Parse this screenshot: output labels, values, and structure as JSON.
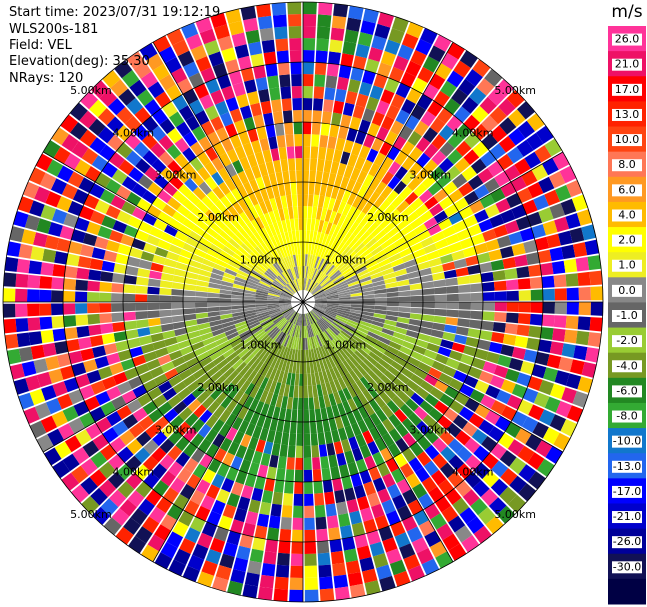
{
  "header": {
    "start_time": "Start time: 2023/07/31 19:12:19",
    "instrument": "WLS200s-181",
    "field": "Field: VEL",
    "elevation": "Elevation(deg): 35.30",
    "nrays": "NRays: 120"
  },
  "colorbar": {
    "unit": "m/s",
    "ticks": [
      "26.0",
      "21.0",
      "17.0",
      "13.0",
      "10.0",
      "8.0",
      "6.0",
      "4.0",
      "2.0",
      "1.0",
      "0.0",
      "-1.0",
      "-2.0",
      "-4.0",
      "-6.0",
      "-8.0",
      "-10.0",
      "-13.0",
      "-17.0",
      "-21.0",
      "-26.0",
      "-30.0"
    ],
    "colors": [
      "#ff3399",
      "#ee1166",
      "#ff0000",
      "#ff2200",
      "#ff4411",
      "#ff7755",
      "#ff9922",
      "#ffbb00",
      "#ffff00",
      "#eeee22",
      "#888888",
      "#666666",
      "#99cc33",
      "#779922",
      "#228822",
      "#33aa33",
      "#1177cc",
      "#2266ee",
      "#0000ff",
      "#0000cc",
      "#000099",
      "#111155",
      "#000044"
    ]
  },
  "chart_data": {
    "type": "ppi",
    "field": "VEL",
    "units": "m/s",
    "nrays": 120,
    "range_rings_km": [
      1.0,
      2.0,
      3.0,
      4.0,
      5.0
    ],
    "ring_labels": [
      "1.00km",
      "2.00km",
      "3.00km",
      "4.00km",
      "5.00km"
    ],
    "max_range_km": 5.0,
    "color_levels": [
      -30.0,
      -26.0,
      -21.0,
      -17.0,
      -13.0,
      -10.0,
      -8.0,
      -6.0,
      -4.0,
      -2.0,
      -1.0,
      0.0,
      1.0,
      2.0,
      4.0,
      6.0,
      8.0,
      10.0,
      13.0,
      17.0,
      21.0,
      26.0
    ]
  }
}
